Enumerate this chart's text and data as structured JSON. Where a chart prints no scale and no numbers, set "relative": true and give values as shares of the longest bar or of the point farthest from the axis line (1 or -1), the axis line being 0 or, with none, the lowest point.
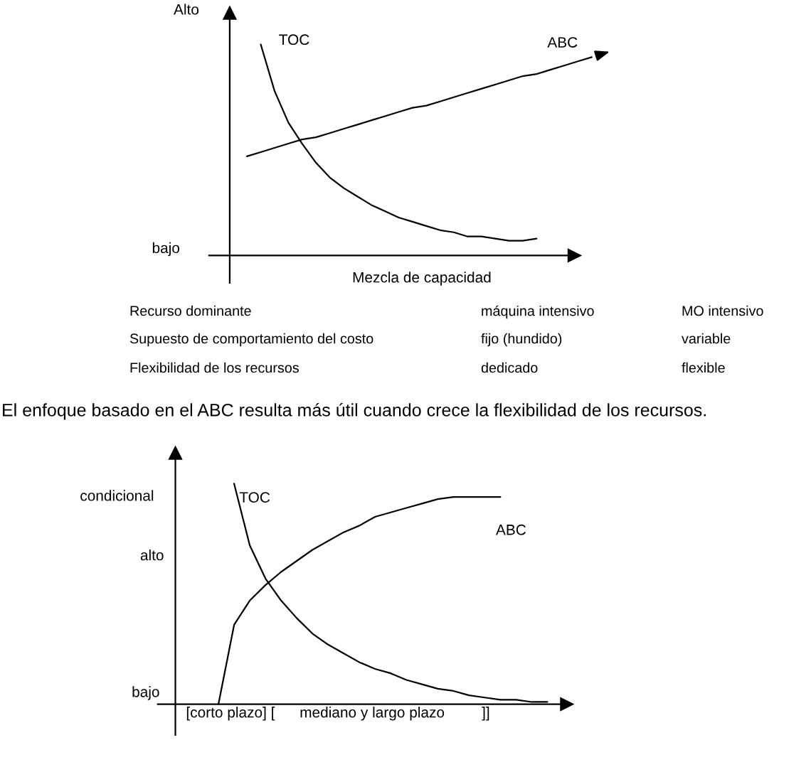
{
  "chart_data": [
    {
      "type": "line",
      "relative": true,
      "xlabel": "Mezcla de capacidad",
      "categories": [
        null,
        null,
        null,
        null,
        null,
        null,
        null,
        null,
        null,
        null,
        null,
        null,
        null,
        null,
        null,
        null,
        null,
        null,
        null,
        null,
        null,
        null,
        null,
        null,
        null,
        null
      ],
      "series": [
        {
          "name": "TOC",
          "color": "#000000",
          "values": [
            null,
            1.0,
            0.78,
            0.63,
            0.53,
            0.44,
            0.37,
            0.32,
            0.28,
            0.24,
            0.21,
            0.18,
            0.16,
            0.14,
            0.12,
            0.11,
            0.09,
            0.09,
            0.08,
            0.07,
            0.07,
            0.08,
            null,
            null,
            null,
            null
          ]
        },
        {
          "name": "ABC",
          "color": "#000000",
          "values": [
            0.47,
            0.49,
            0.51,
            0.53,
            0.55,
            0.56,
            0.58,
            0.6,
            0.62,
            0.64,
            0.66,
            0.68,
            0.7,
            0.71,
            0.73,
            0.75,
            0.77,
            0.79,
            0.81,
            0.83,
            0.85,
            0.86,
            0.88,
            0.9,
            0.92,
            0.94
          ]
        }
      ],
      "annotations": [
        "Alto",
        "bajo",
        "Recurso dominante",
        "máquina intensivo",
        "MO intensivo",
        "Supuesto de comportamiento del costo",
        "fijo (hundido)",
        "variable",
        "Flexibilidad de los recursos",
        "dedicado",
        "flexible"
      ]
    },
    {
      "type": "line",
      "relative": true,
      "title": "El enfoque basado en el ABC resulta más útil cuando crece la flexibilidad de los recursos.",
      "xlabel": "[corto plazo] [      mediano y largo plazo         ]]",
      "categories": [
        null,
        null,
        null,
        null,
        null,
        null,
        null,
        null,
        null,
        null,
        null,
        null,
        null,
        null,
        null,
        null,
        null,
        null,
        null,
        null,
        null,
        null
      ],
      "series": [
        {
          "name": "TOC",
          "color": "#000000",
          "values": [
            null,
            1.0,
            0.72,
            0.57,
            0.47,
            0.39,
            0.32,
            0.27,
            0.23,
            0.19,
            0.16,
            0.14,
            0.11,
            0.09,
            0.07,
            0.06,
            0.04,
            0.03,
            0.02,
            0.02,
            0.01,
            0.01
          ]
        },
        {
          "name": "ABC",
          "color": "#000000",
          "values": [
            0,
            0.36,
            0.47,
            0.54,
            0.6,
            0.65,
            0.7,
            0.74,
            0.78,
            0.81,
            0.85,
            0.87,
            0.89,
            0.91,
            0.93,
            0.94,
            0.94,
            0.94,
            0.94,
            null,
            null,
            null
          ]
        }
      ],
      "annotations": [
        "condicional",
        "alto",
        "bajo"
      ]
    }
  ]
}
